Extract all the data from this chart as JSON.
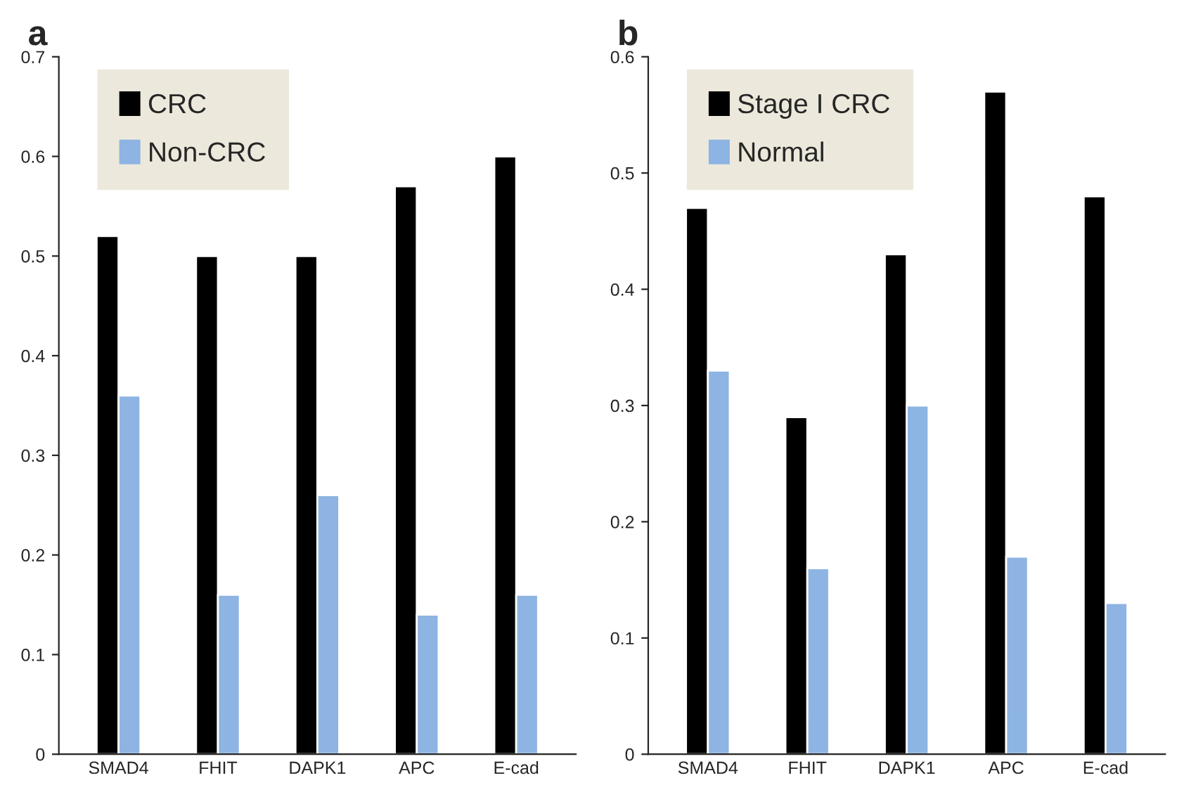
{
  "chart_data": [
    {
      "type": "bar",
      "title": "a",
      "categories": [
        "SMAD4",
        "FHIT",
        "DAPK1",
        "APC",
        "E-cad"
      ],
      "series": [
        {
          "name": "CRC",
          "color": "#000000",
          "values": [
            0.52,
            0.5,
            0.5,
            0.57,
            0.6
          ]
        },
        {
          "name": "Non-CRC",
          "color": "#8db4e2",
          "values": [
            0.36,
            0.16,
            0.26,
            0.14,
            0.16
          ]
        }
      ],
      "ylim": [
        0,
        0.7
      ],
      "yticks": [
        0,
        0.1,
        0.2,
        0.3,
        0.4,
        0.5,
        0.6,
        0.7
      ],
      "legend": "top left",
      "grid": false
    },
    {
      "type": "bar",
      "title": "b",
      "categories": [
        "SMAD4",
        "FHIT",
        "DAPK1",
        "APC",
        "E-cad"
      ],
      "series": [
        {
          "name": "Stage I CRC",
          "color": "#000000",
          "values": [
            0.47,
            0.29,
            0.43,
            0.57,
            0.48
          ]
        },
        {
          "name": "Normal",
          "color": "#8db4e2",
          "values": [
            0.33,
            0.16,
            0.3,
            0.17,
            0.13
          ]
        }
      ],
      "ylim": [
        0,
        0.6
      ],
      "yticks": [
        0,
        0.1,
        0.2,
        0.3,
        0.4,
        0.5,
        0.6
      ],
      "legend": "top left",
      "grid": false
    }
  ]
}
